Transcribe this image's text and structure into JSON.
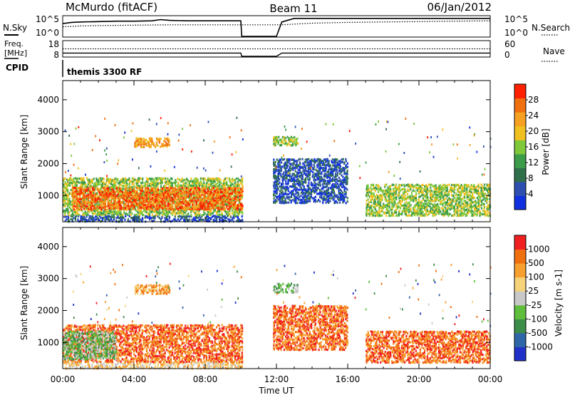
{
  "header": {
    "station": "McMurdo (fitACF)",
    "beam": "Beam 11",
    "date": "06/Jan/2012"
  },
  "left_labels": {
    "nsky": "N.Sky",
    "freq": "Freq.",
    "freq_unit": "[MHz]",
    "cpid": "CPID"
  },
  "right_labels": {
    "nsearch": "N.Search",
    "nave": "Nave"
  },
  "cpid_text": "themis 3300 RF",
  "colors": {
    "power": [
      "#1030e0",
      "#2e4fb0",
      "#2f6f4a",
      "#3d9c4a",
      "#7ec83a",
      "#f0c020",
      "#f5a020",
      "#f07010",
      "#ff2000"
    ],
    "velocity": [
      "#2030c8",
      "#2f66a8",
      "#3c8c4a",
      "#5fbf3c",
      "#c8c8c8",
      "#f6d27a",
      "#f7a030",
      "#f07010",
      "#f02020"
    ]
  },
  "chart_data": [
    {
      "type": "line",
      "name": "noise",
      "xlabel": "",
      "x_ticks": [],
      "y_ticks_left": [
        "10^5",
        "10^0"
      ],
      "y_ticks_right": [
        "10^5",
        "10^0"
      ],
      "series": [
        {
          "name": "N.Sky",
          "style": "solid",
          "x": [
            0,
            0.5,
            1,
            2,
            3,
            4,
            5,
            5.5,
            6,
            7,
            8,
            9,
            10,
            10.05,
            12,
            12.3,
            13,
            14,
            16,
            18,
            20,
            20.5,
            21,
            22,
            23,
            24
          ],
          "y": [
            3.2,
            3.5,
            3.6,
            3.7,
            3.8,
            3.8,
            3.9,
            4.2,
            4.0,
            3.9,
            3.9,
            3.9,
            3.9,
            0,
            0,
            3.6,
            4.5,
            4.5,
            4.5,
            4.5,
            4.5,
            4.5,
            4.5,
            4.5,
            4.5,
            4.5
          ]
        },
        {
          "name": "N.Search",
          "style": "dotted",
          "x": [
            0,
            1,
            2,
            4,
            6,
            8,
            10,
            12.3,
            14,
            16,
            18,
            20,
            22,
            24
          ],
          "y": [
            2.4,
            2.6,
            2.7,
            2.8,
            2.9,
            2.9,
            2.9,
            2.9,
            3.3,
            3.5,
            3.6,
            3.7,
            3.8,
            3.9
          ]
        }
      ]
    },
    {
      "type": "line",
      "name": "frequency",
      "y_ticks_left": [
        "18",
        "8"
      ],
      "y_ticks_right": [
        "60",
        "0"
      ],
      "series": [
        {
          "name": "Freq.",
          "style": "solid",
          "x": [
            0,
            10,
            10.05,
            12,
            12.3,
            13,
            24
          ],
          "y": [
            10.2,
            10.2,
            8,
            8,
            10.2,
            10.2,
            10.2
          ]
        },
        {
          "name": "Nave",
          "style": "dotted",
          "x": [
            0,
            10,
            12.3,
            24
          ],
          "y": [
            13,
            13,
            13,
            13
          ]
        }
      ]
    },
    {
      "type": "heatmap",
      "name": "power",
      "ylabel": "Slant Range [km]",
      "xlabel": "Time UT",
      "x_range": [
        0,
        24
      ],
      "y_range": [
        180,
        4600
      ],
      "x_ticks": [
        "00:00",
        "04:00",
        "08:00",
        "12:00",
        "16:00",
        "20:00",
        "00:00"
      ],
      "y_ticks": [
        "1000",
        "2000",
        "3000",
        "4000"
      ],
      "colorbar_label": "Power [dB]",
      "colorbar_ticks": [
        "28",
        "24",
        "20",
        "16",
        "12",
        "8",
        "4"
      ],
      "regions": [
        {
          "t": [
            0,
            10.1
          ],
          "r": [
            220,
            420
          ],
          "level": 1
        },
        {
          "t": [
            0,
            10.1
          ],
          "r": [
            420,
            1600
          ],
          "level": 4
        },
        {
          "t": [
            0.5,
            10.1
          ],
          "r": [
            600,
            1300
          ],
          "level": 7
        },
        {
          "t": [
            4,
            6
          ],
          "r": [
            2550,
            2850
          ],
          "level": 6
        },
        {
          "t": [
            11.8,
            13.2
          ],
          "r": [
            2600,
            2900
          ],
          "level": 4
        },
        {
          "t": [
            11.8,
            16
          ],
          "r": [
            800,
            2200
          ],
          "level": 1
        },
        {
          "t": [
            17,
            24
          ],
          "r": [
            400,
            1400
          ],
          "level": 4
        }
      ]
    },
    {
      "type": "heatmap",
      "name": "velocity",
      "ylabel": "Slant Range [km]",
      "xlabel": "Time UT",
      "x_range": [
        0,
        24
      ],
      "y_range": [
        180,
        4600
      ],
      "x_ticks": [
        "00:00",
        "04:00",
        "08:00",
        "12:00",
        "16:00",
        "20:00",
        "00:00"
      ],
      "y_ticks": [
        "1000",
        "2000",
        "3000",
        "4000"
      ],
      "colorbar_label": "Velocity [m s-1]",
      "colorbar_ticks": [
        "1000",
        "500",
        "100",
        "25",
        "-25",
        "-100",
        "-500",
        "-1000"
      ],
      "regions": [
        {
          "t": [
            0,
            10.1
          ],
          "r": [
            220,
            420
          ],
          "level": 5
        },
        {
          "t": [
            0,
            10.1
          ],
          "r": [
            420,
            1600
          ],
          "level": 7
        },
        {
          "t": [
            0,
            3
          ],
          "r": [
            500,
            1400
          ],
          "level": 3
        },
        {
          "t": [
            4,
            6
          ],
          "r": [
            2550,
            2850
          ],
          "level": 6
        },
        {
          "t": [
            11.8,
            13.2
          ],
          "r": [
            2600,
            2900
          ],
          "level": 3
        },
        {
          "t": [
            11.8,
            16
          ],
          "r": [
            800,
            2200
          ],
          "level": 7
        },
        {
          "t": [
            17,
            24
          ],
          "r": [
            400,
            1400
          ],
          "level": 7
        }
      ]
    }
  ]
}
